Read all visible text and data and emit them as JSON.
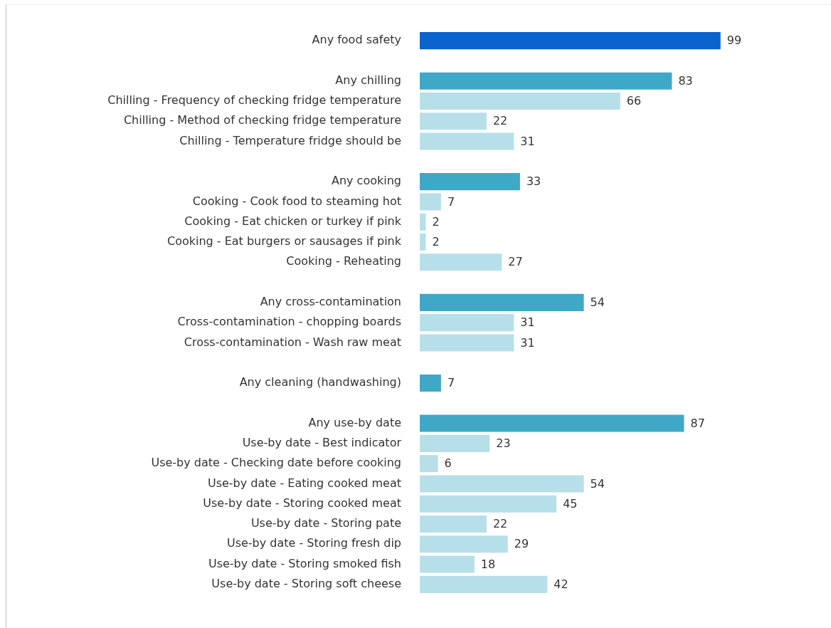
{
  "chart_data": {
    "type": "bar",
    "orientation": "horizontal",
    "data_labels": true,
    "legend": false,
    "tick_labels": "y",
    "categories": [
      "Any food safety",
      null,
      "Any chilling",
      "Chilling - Frequency of checking fridge temperature",
      "Chilling - Method of checking fridge temperature",
      "Chilling - Temperature fridge should be",
      null,
      "Any cooking",
      "Cooking - Cook food to steaming hot",
      "Cooking - Eat chicken or turkey if pink",
      "Cooking - Eat burgers or sausages if pink",
      "Cooking - Reheating",
      null,
      "Any cross-contamination",
      "Cross-contamination - chopping boards",
      "Cross-contamination - Wash raw meat",
      null,
      "Any cleaning (handwashing)",
      null,
      "Any use-by date",
      "Use-by date - Best indicator",
      "Use-by date - Checking date before cooking",
      "Use-by date - Eating cooked meat",
      "Use-by date - Storing cooked meat",
      "Use-by date - Storing pate",
      "Use-by date - Storing fresh dip",
      "Use-by date - Storing smoked fish",
      "Use-by date - Storing soft cheese"
    ],
    "values": [
      99,
      null,
      83,
      66,
      22,
      31,
      null,
      33,
      7,
      2,
      2,
      27,
      null,
      54,
      31,
      31,
      null,
      7,
      null,
      87,
      23,
      6,
      54,
      45,
      22,
      29,
      18,
      42
    ],
    "colors": [
      "#0b63cc",
      null,
      "#3fa8c6",
      "#b7dfe9",
      "#b7dfe9",
      "#b7dfe9",
      null,
      "#3fa8c6",
      "#b7dfe9",
      "#b7dfe9",
      "#b7dfe9",
      "#b7dfe9",
      null,
      "#3fa8c6",
      "#b7dfe9",
      "#b7dfe9",
      null,
      "#3fa8c6",
      null,
      "#3fa8c6",
      "#b7dfe9",
      "#b7dfe9",
      "#b7dfe9",
      "#b7dfe9",
      "#b7dfe9",
      "#b7dfe9",
      "#b7dfe9",
      "#b7dfe9"
    ]
  }
}
